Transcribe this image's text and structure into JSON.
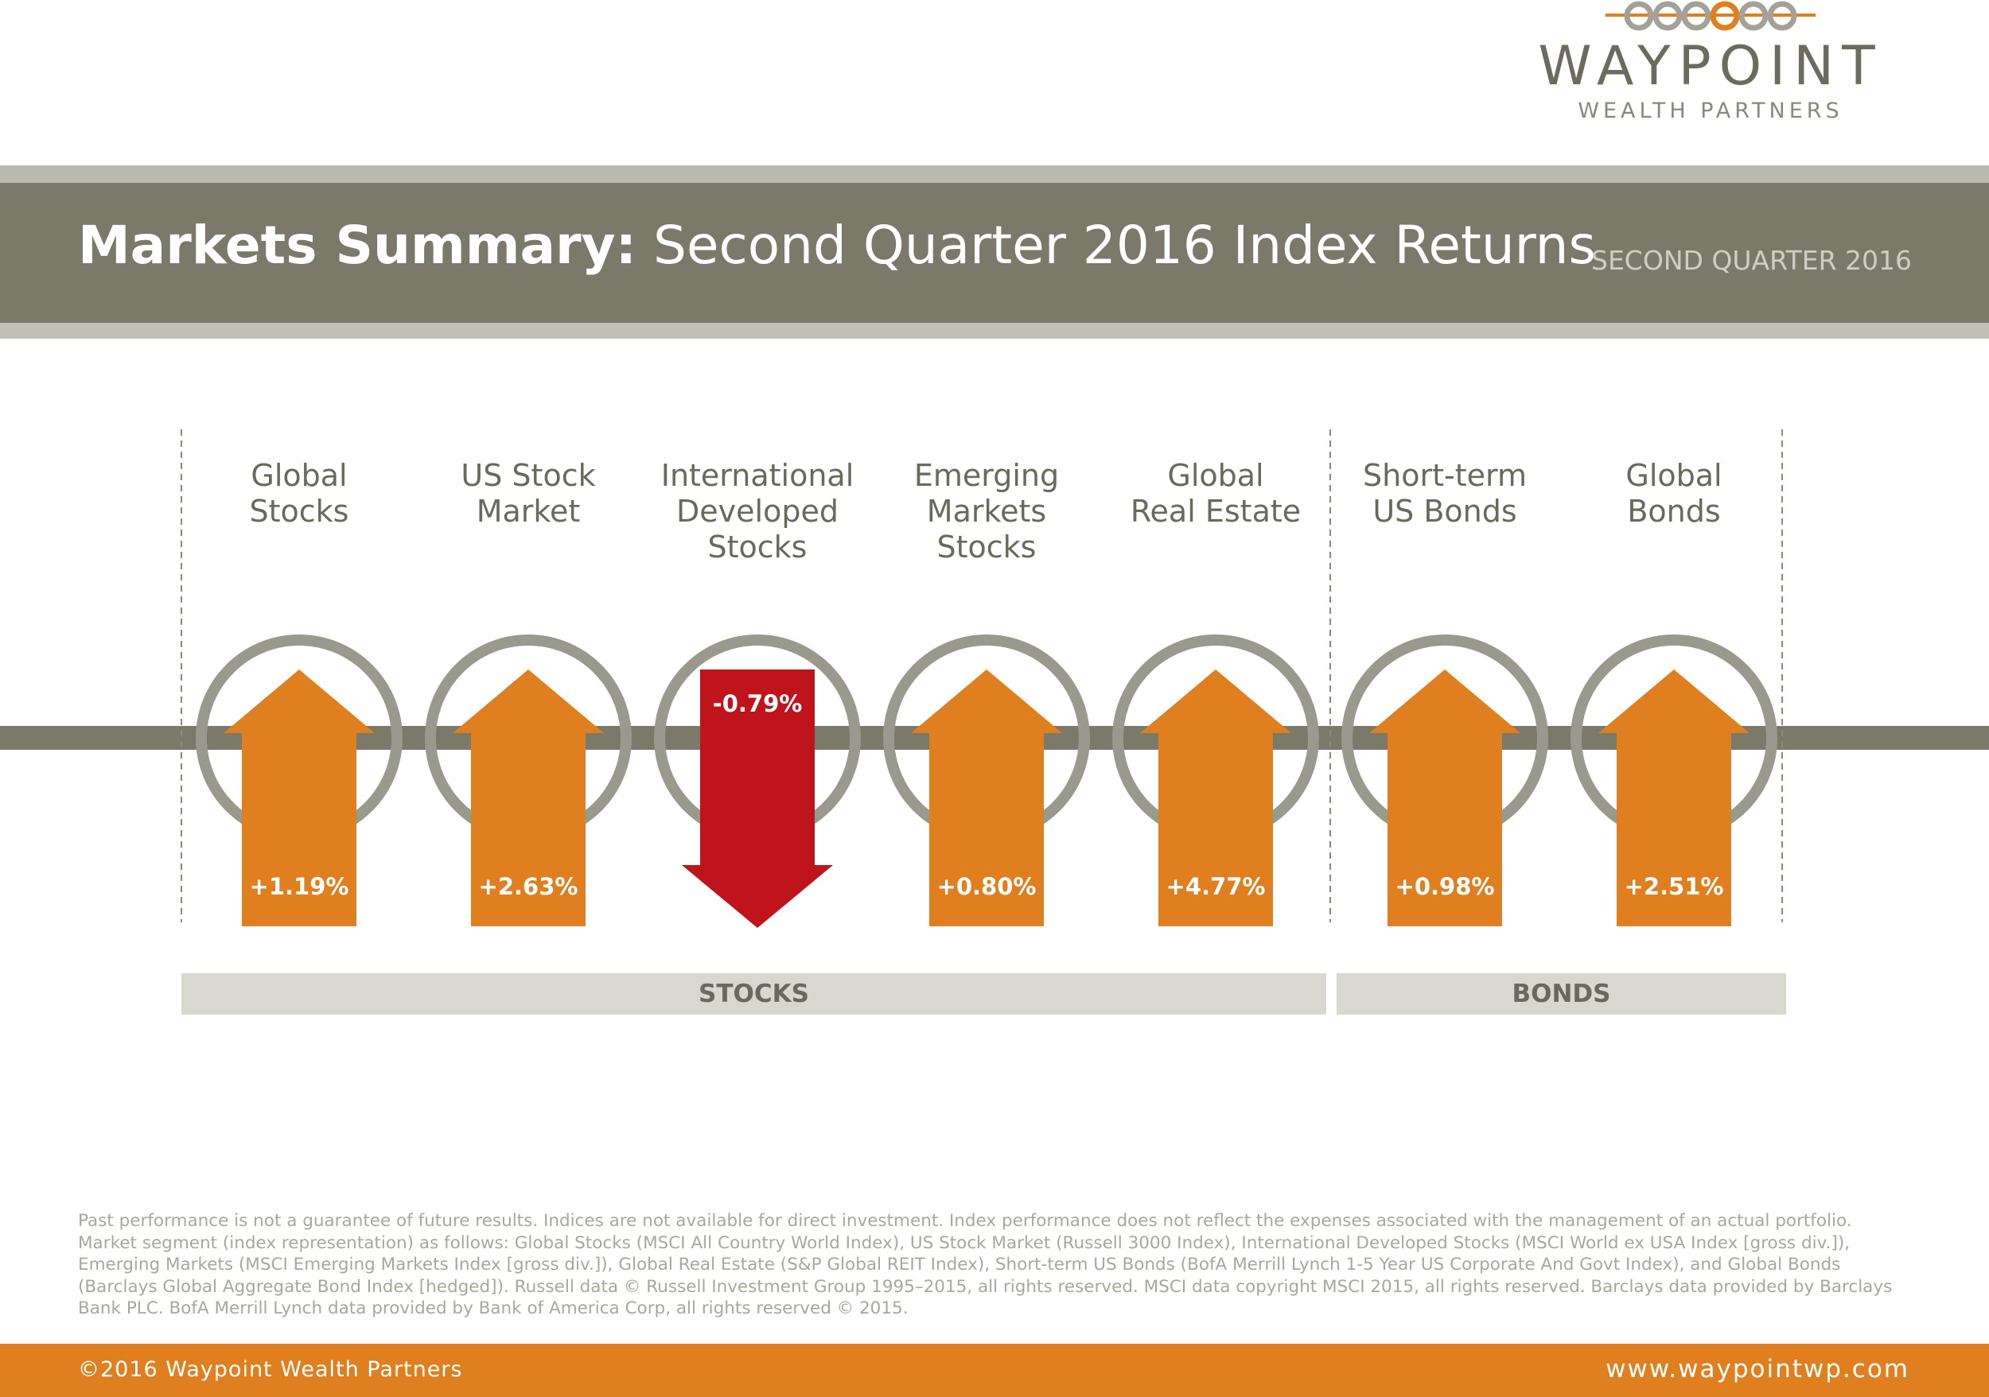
{
  "brand": {
    "name": "WAYPOINT",
    "tagline": "WEALTH PARTNERS",
    "colors": {
      "orange": "#e07f1f",
      "red": "#bf141c",
      "gray": "#7b796a",
      "ring": "#9a998e"
    }
  },
  "header": {
    "title_bold": "Markets Summary:",
    "title_rest": " Second Quarter 2016 Index Returns",
    "period": "SECOND QUARTER 2016"
  },
  "chart_data": {
    "type": "bar",
    "categories": [
      "Global\nStocks",
      "US Stock\nMarket",
      "International\nDeveloped\nStocks",
      "Emerging\nMarkets\nStocks",
      "Global\nReal Estate",
      "Short-term\nUS Bonds",
      "Global\nBonds"
    ],
    "values": [
      1.19,
      2.63,
      -0.79,
      0.8,
      4.77,
      0.98,
      2.51
    ],
    "value_labels": [
      "+1.19%",
      "+2.63%",
      "-0.79%",
      "+0.80%",
      "+4.77%",
      "+0.98%",
      "+2.51%"
    ],
    "groups": [
      {
        "label": "STOCKS",
        "count": 5
      },
      {
        "label": "BONDS",
        "count": 2
      }
    ],
    "unit": "%"
  },
  "footnote": "Past performance is not a guarantee of future results. Indices are not available for direct investment. Index performance does not reflect the expenses associated with the management of an actual portfolio. Market segment (index representation) as follows: Global Stocks (MSCI All Country World Index), US Stock Market (Russell 3000 Index), International Developed Stocks (MSCI World ex USA Index [gross div.]), Emerging Markets (MSCI Emerging Markets Index [gross div.]), Global Real Estate (S&P Global REIT Index), Short-term US Bonds (BofA Merrill Lynch 1-5 Year US Corporate And Govt Index), and Global Bonds (Barclays Global Aggregate Bond Index [hedged]). Russell data © Russell Investment Group 1995–2015, all rights reserved. MSCI data copyright MSCI 2015, all rights reserved. Barclays data provided by Barclays Bank PLC. BofA Merrill Lynch data provided by Bank of America Corp, all rights reserved © 2015.",
  "footer": {
    "copyright": "©2016 Waypoint Wealth Partners",
    "website": "www.waypointwp.com"
  }
}
